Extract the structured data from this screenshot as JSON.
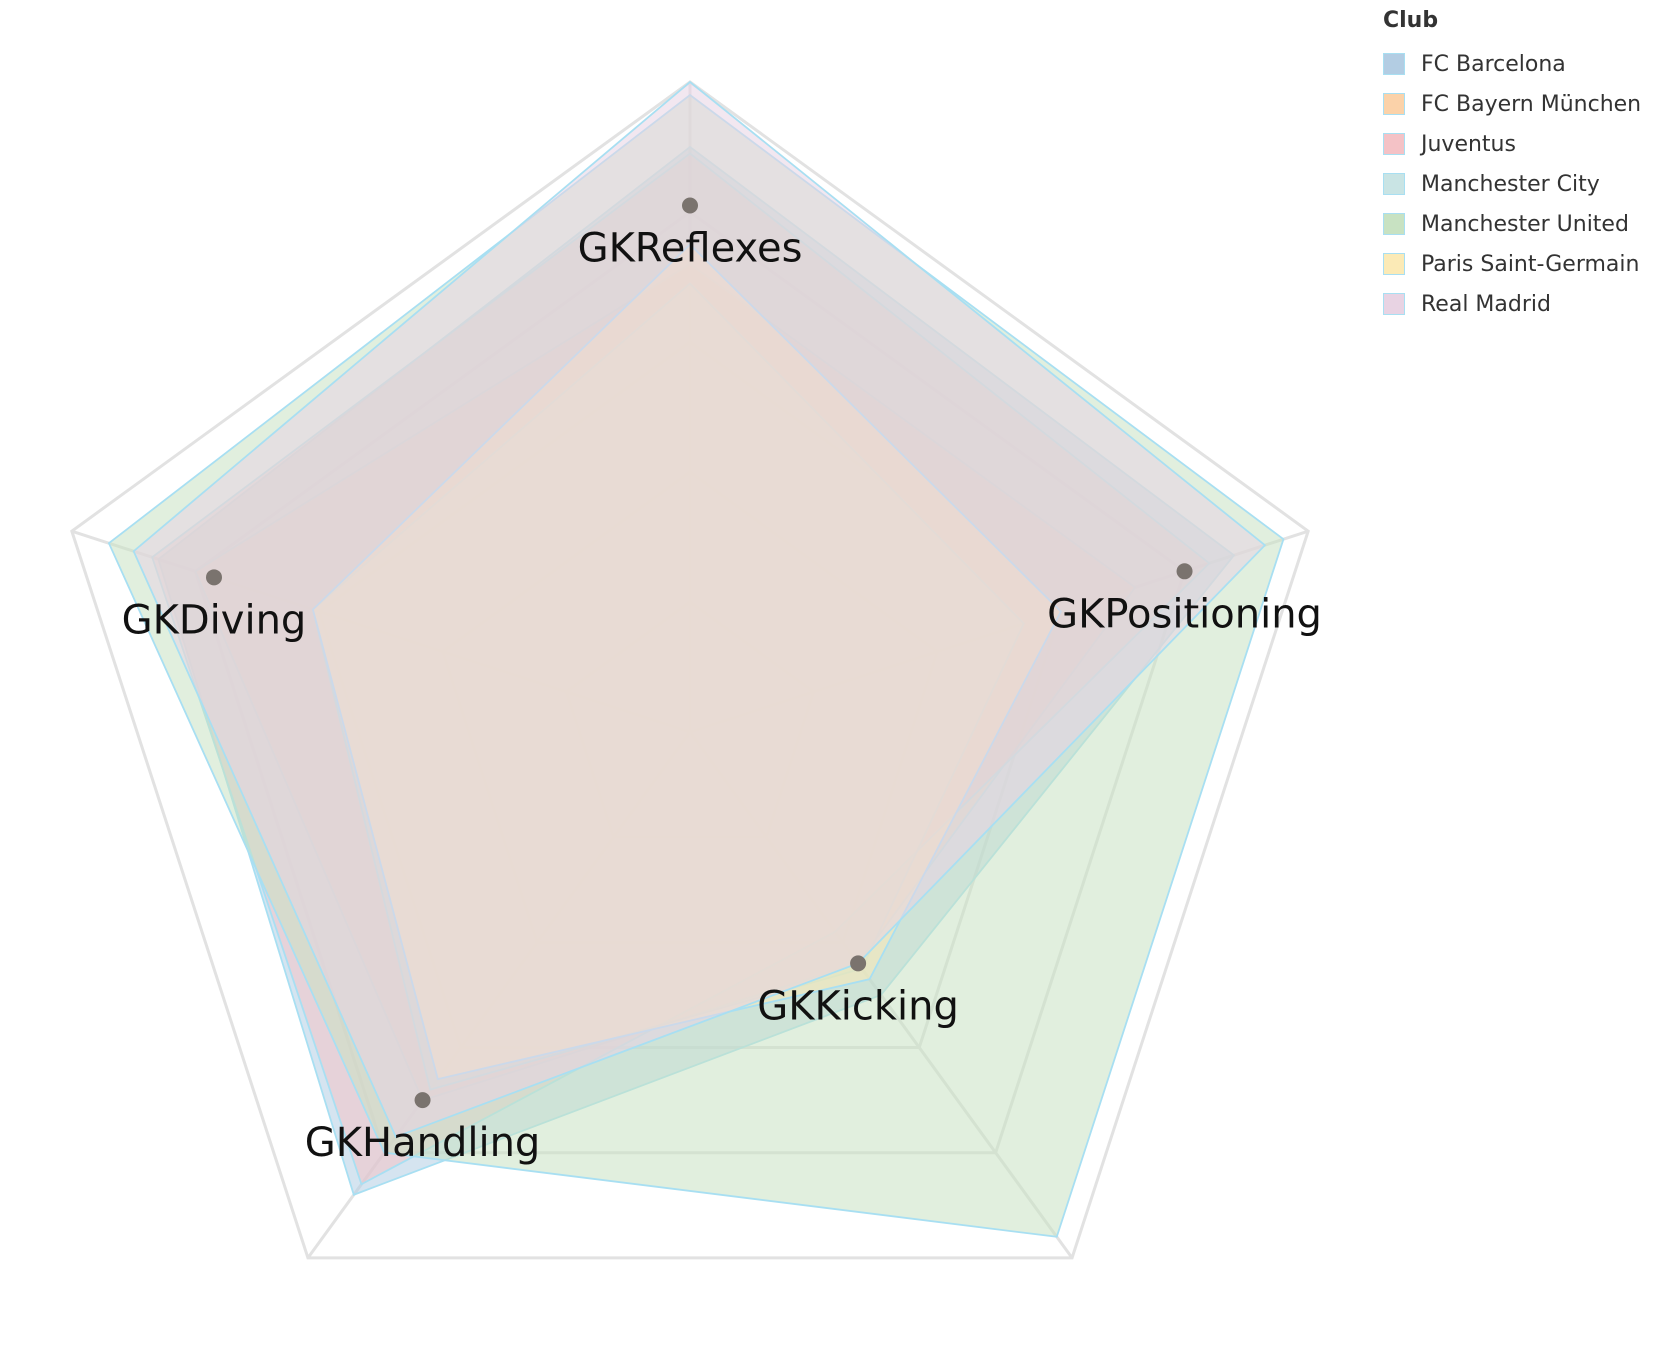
{
  "chart_data": {
    "type": "radar",
    "axes": [
      "GKReflexes",
      "GKPositioning",
      "GKKicking",
      "GKHandling",
      "GKDiving"
    ],
    "range": [
      0,
      100
    ],
    "grid": true,
    "legend": {
      "title": "Club",
      "position": "top-right"
    },
    "series": [
      {
        "name": "FC Barcelona",
        "color": "#b3cde3",
        "values": [
          90,
          88,
          50,
          88,
          86
        ]
      },
      {
        "name": "FC Bayern München",
        "color": "#fbd2a9",
        "values": [
          72,
          72,
          44,
          70,
          80
        ]
      },
      {
        "name": "Juventus",
        "color": "#f4c2c6",
        "values": [
          89,
          84,
          38,
          86,
          87
        ]
      },
      {
        "name": "Manchester City",
        "color": "#c9e4e4",
        "values": [
          69,
          54,
          45,
          68,
          61
        ]
      },
      {
        "name": "Manchester United",
        "color": "#c8e2c2",
        "values": [
          98,
          96,
          96,
          80,
          94
        ]
      },
      {
        "name": "Paris Saint-Germain",
        "color": "#fbeab6",
        "values": [
          75,
          60,
          47,
          66,
          61
        ]
      },
      {
        "name": "Real Madrid",
        "color": "#e8d3e3",
        "values": [
          100,
          93,
          44,
          77,
          90
        ]
      }
    ],
    "mean_points": [
      81,
      80,
      44,
      70,
      77
    ]
  }
}
